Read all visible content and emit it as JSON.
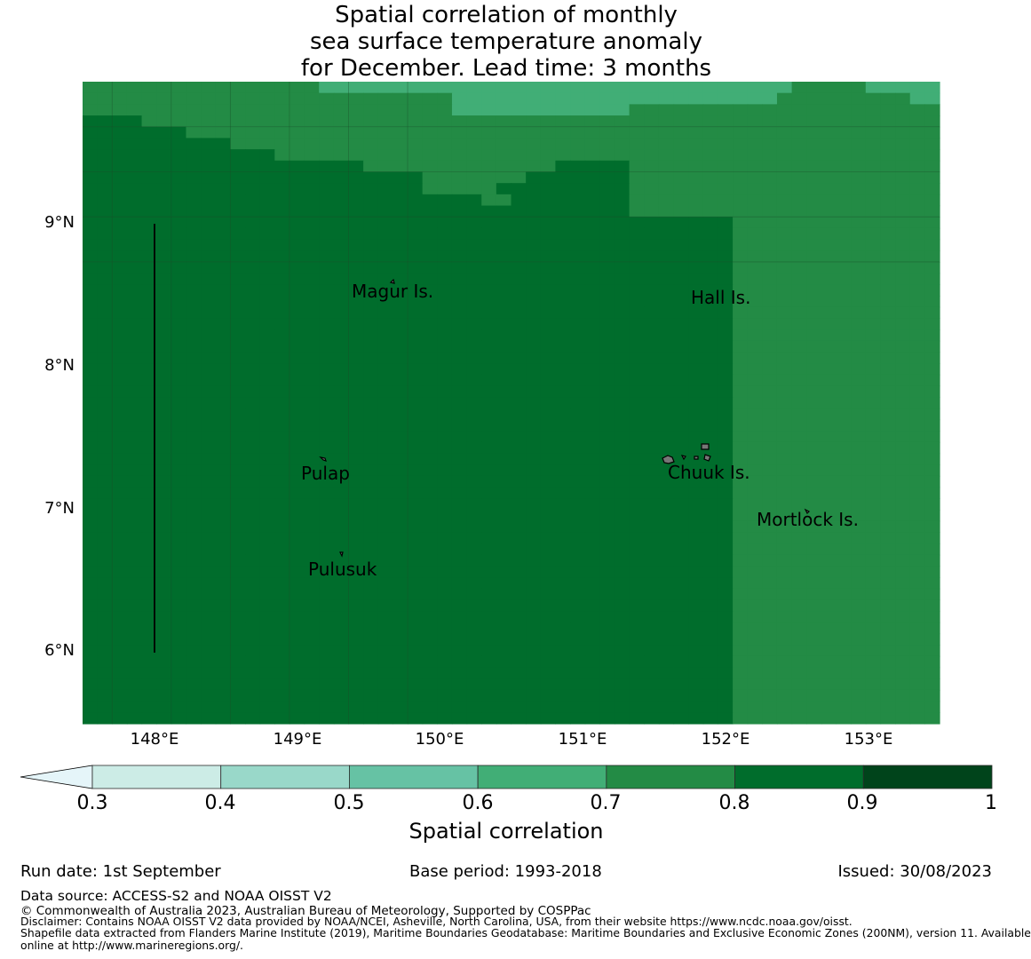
{
  "title": {
    "line1": "Spatial correlation of monthly",
    "line2": "sea surface temperature anomaly",
    "line3": "for December. Lead time: 3 months"
  },
  "axes": {
    "lat_labels": [
      "9°N",
      "8°N",
      "7°N",
      "6°N"
    ],
    "lon_labels": [
      "148°E",
      "149°E",
      "150°E",
      "151°E",
      "152°E",
      "153°E"
    ]
  },
  "places": {
    "magur": "Magur Is.",
    "hall": "Hall Is.",
    "pulap": "Pulap",
    "chuuk": "Chuuk Is.",
    "mortlock": "Mortlock Is.",
    "pulusuk": "Pulusuk"
  },
  "legend": {
    "ticks": [
      "0.3",
      "0.4",
      "0.5",
      "0.6",
      "0.7",
      "0.8",
      "0.9",
      "1"
    ],
    "title": "Spatial correlation",
    "colors": [
      "#e5f5f9",
      "#ccece6",
      "#99d8c9",
      "#66c2a4",
      "#41ae76",
      "#238b45",
      "#006d2c",
      "#00441b"
    ]
  },
  "footer": {
    "run_date": "Run date: 1st September",
    "base_period": "Base period: 1993-2018",
    "issued": "Issued: 30/08/2023",
    "data_source": "Data source: ACCESS-S2 and NOAA OISST V2",
    "copyright": "© Commonwealth of Australia 2023, Australian Bureau of Meteorology, Supported by COSPPac",
    "disclaimer": "Disclaimer: Contains NOAA OISST V2 data provided by NOAA/NCEI, Asheville, North Carolina, USA, from their website https://www.ncdc.noaa.gov/oisst.",
    "shapefile1": "Shapefile data extracted from Flanders Marine Institute (2019), Maritime Boundaries Geodatabase: Maritime Boundaries and Exclusive Economic Zones (200NM), version 11. Available",
    "shapefile2": "online at http://www.marineregions.org/."
  },
  "grid": {
    "lon_start": 147.5,
    "lat_start": 10.0,
    "step": 0.25,
    "class_colors": {
      "6": "#41ae76",
      "7": "#238b45",
      "8": "#006d2c"
    },
    "rows": [
      "7777777777777777666666666666666666666666666666667777766666",
      "7777777777777777777777777666666666666666666666677777777766",
      "7777777777777777777777777666666666666777777777777777777777",
      "8888777777777777777777777777777777777777777777777777777777",
      "8888888777777777777777777777777777777777777777777777777777",
      "8888888888777777777777777777777777777777777777777777777777",
      "8888888888888777777777777777777777777777777777777777777777",
      "8888888888888888888777777777777788888777777777777777777777",
      "8888888888888888888888877777778888888777777777777777777777",
      "8888888888888888888888877777888888888777777777777777777777",
      "8888888888888888888888888887788888888777777777777777777777",
      "8888888888888888888888888888888888888777777777777777777777",
      "8888888888888888888888888888888888888888888877777777777777",
      "8888888888888888888888888888888888888888888877777777777777",
      "8888888888888888888888888888888888888888888877777777777777",
      "8888888888888888888888888888888888888888888877777777777777",
      "8888888888888888888888888888888888888888888877777777777777",
      "8888888888888888888888888888888888888888888877777777777777",
      "8888888888888888888888888888888888888888888877777777777777",
      "8888888888888888888888888888888888888888888877777777777777",
      "8888888888888888888888888888888888888888888877777777777777",
      "8888888888888888888888888888888888888888888877777777777777",
      "8888888888888888888888888888888888888888888877777777777777",
      "8888888888888888888888888888888888888888888877777777777777",
      "8888888888888888888888888888888888888888888877777777777777",
      "8888888888888888888888888888888888888888888877777777777777",
      "8888888888888888888888888888888888888888888877777777777777",
      "8888888888888888888888888888888888888888888877777777777777",
      "8888888888888888888888888888888888888888888877777777777777",
      "8888888888888888888888888888888888888888888877777777777777",
      "8888888888888888888888888888888888888888888877777777777777",
      "8888888888888888888888888888888888888888888877777777777777",
      "8888888888888888888888888888888888888888888877777777777777",
      "8888888888888888888888888888888888888888888877777777777777",
      "8888888888888888888888888888888888888888888877777777777777",
      "8888888888888888888888888888888888888888888877777777777777",
      "8888888888888888888888888888888888888888888877777777777777",
      "8888888888888888888888888888888888888888888877777777777777",
      "8888888888888888888888888888888888888888888877777777777777",
      "8888888888888888888888888888888888888888888877777777777777",
      "8888888888888888888888888888888888888888888877777777777777",
      "8888888888888888888888888888888888888888888877777777777777",
      "8888888888888888888888888888888888888888888877777777777777",
      "8888888888888888888888888888888888888888888877777777777777",
      "8888888888888888888888888888888888888888888877777777777777",
      "8888888888888888888888888888888888888888888877777777777777",
      "8888888888888888888888888888888888888888888877777777777777",
      "8888888888888888888888888888888888888888888877777777777777",
      "8888888888888888888888888888888888888888888877777777777777",
      "8888888888888888888888888888888888888888888877777777777777",
      "8888888888888888888888888888888888888888888877777777777777",
      "8888888888888888888888888888888888888888888877777777777777",
      "8888888888888888888888888888888888888888888877777777777777",
      "8888888888888888888888888888888888888888888877777777777777",
      "8888888888888888888888888888888888888888888877777777777777",
      "8888888888888888888888888888888888888888888877777777777777",
      "8888888888888888888888888888888888888888888877777777777777"
    ]
  }
}
